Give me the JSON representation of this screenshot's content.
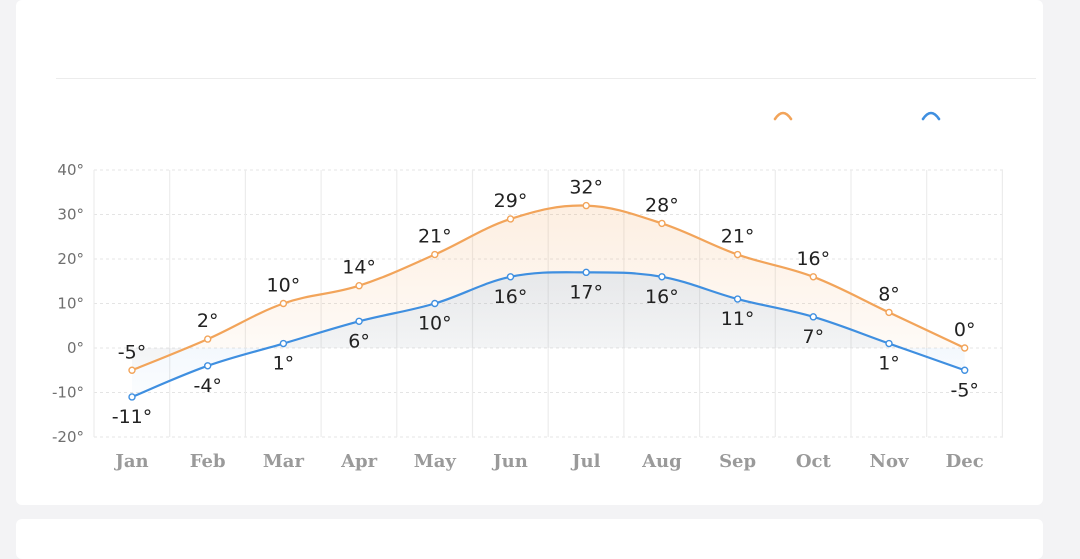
{
  "chart_data": {
    "type": "line",
    "categories": [
      "Jan",
      "Feb",
      "Mar",
      "Apr",
      "May",
      "Jun",
      "Jul",
      "Aug",
      "Sep",
      "Oct",
      "Nov",
      "Dec"
    ],
    "series": [
      {
        "values": [
          -5,
          2,
          10,
          14,
          21,
          29,
          32,
          28,
          21,
          16,
          8,
          0
        ],
        "color": "#f2a45a",
        "fill": "area-gradient-orange"
      },
      {
        "values": [
          -11,
          -4,
          1,
          6,
          10,
          16,
          17,
          16,
          11,
          7,
          1,
          -5
        ],
        "color": "#3f8fe0",
        "fill": "area-gradient-blue"
      }
    ],
    "ylim": [
      -20,
      40
    ],
    "yticks": [
      -20,
      -10,
      0,
      10,
      20,
      30,
      40
    ],
    "unit_suffix": "°",
    "grid": "dashed-horizontal and solid-vertical",
    "legend_position": "top-right",
    "data_labels": true,
    "xlabel": "",
    "ylabel": "",
    "title": ""
  },
  "legend_icons": [
    "orange-series-icon",
    "blue-series-icon"
  ]
}
